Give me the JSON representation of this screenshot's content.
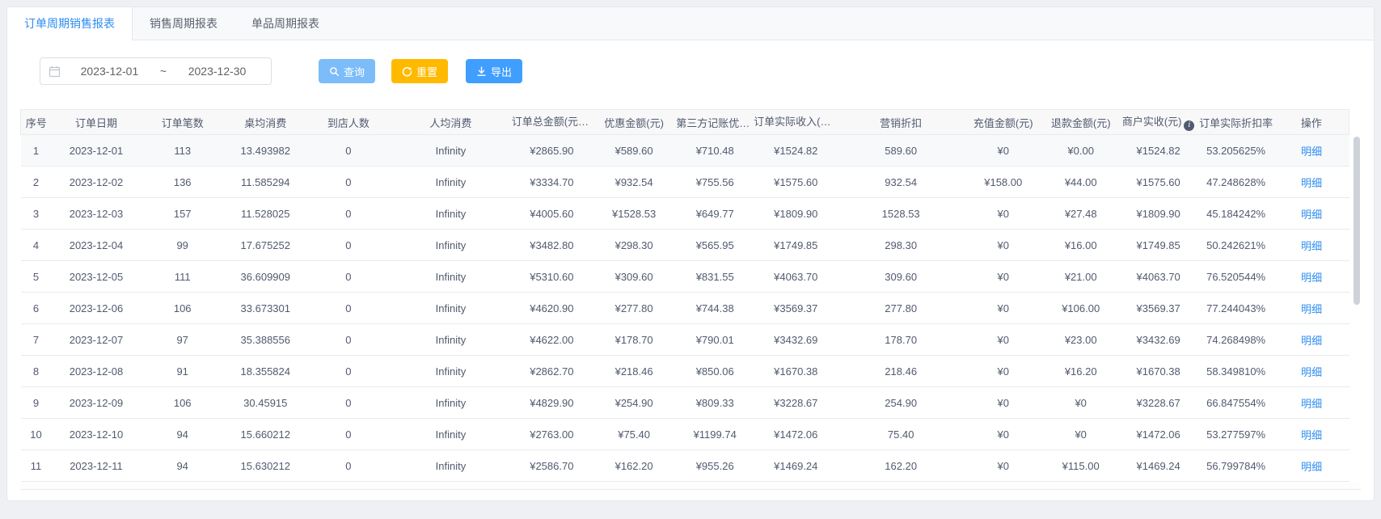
{
  "tabs": [
    {
      "label": "订单周期销售报表",
      "active": true
    },
    {
      "label": "销售周期报表",
      "active": false
    },
    {
      "label": "单品周期报表",
      "active": false
    }
  ],
  "filter": {
    "start_date": "2023-12-01",
    "range_separator": "~",
    "end_date": "2023-12-30"
  },
  "toolbar": {
    "query_label": "查询",
    "reset_label": "重置",
    "export_label": "导出"
  },
  "table": {
    "columns": [
      {
        "label": "序号",
        "info": false
      },
      {
        "label": "订单日期",
        "info": false
      },
      {
        "label": "订单笔数",
        "info": false
      },
      {
        "label": "桌均消费",
        "info": false
      },
      {
        "label": "到店人数",
        "info": false
      },
      {
        "label": "人均消费",
        "info": false
      },
      {
        "label": "订单总金额(元)",
        "info": true
      },
      {
        "label": "优惠金额(元)",
        "info": false
      },
      {
        "label": "第三方记账优惠(元)",
        "info": false
      },
      {
        "label": "订单实际收入(元)",
        "info": true
      },
      {
        "label": "营销折扣",
        "info": false
      },
      {
        "label": "充值金额(元)",
        "info": false
      },
      {
        "label": "退款金额(元)",
        "info": false
      },
      {
        "label": "商户实收(元)",
        "info": true
      },
      {
        "label": "订单实际折扣率",
        "info": false
      },
      {
        "label": "操作",
        "info": false
      }
    ],
    "action_label": "明细",
    "rows": [
      [
        "1",
        "2023-12-01",
        "113",
        "13.493982",
        "0",
        "Infinity",
        "¥2865.90",
        "¥589.60",
        "¥710.48",
        "¥1524.82",
        "589.60",
        "¥0",
        "¥0.00",
        "¥1524.82",
        "53.205625%"
      ],
      [
        "2",
        "2023-12-02",
        "136",
        "11.585294",
        "0",
        "Infinity",
        "¥3334.70",
        "¥932.54",
        "¥755.56",
        "¥1575.60",
        "932.54",
        "¥158.00",
        "¥44.00",
        "¥1575.60",
        "47.248628%"
      ],
      [
        "3",
        "2023-12-03",
        "157",
        "11.528025",
        "0",
        "Infinity",
        "¥4005.60",
        "¥1528.53",
        "¥649.77",
        "¥1809.90",
        "1528.53",
        "¥0",
        "¥27.48",
        "¥1809.90",
        "45.184242%"
      ],
      [
        "4",
        "2023-12-04",
        "99",
        "17.675252",
        "0",
        "Infinity",
        "¥3482.80",
        "¥298.30",
        "¥565.95",
        "¥1749.85",
        "298.30",
        "¥0",
        "¥16.00",
        "¥1749.85",
        "50.242621%"
      ],
      [
        "5",
        "2023-12-05",
        "111",
        "36.609909",
        "0",
        "Infinity",
        "¥5310.60",
        "¥309.60",
        "¥831.55",
        "¥4063.70",
        "309.60",
        "¥0",
        "¥21.00",
        "¥4063.70",
        "76.520544%"
      ],
      [
        "6",
        "2023-12-06",
        "106",
        "33.673301",
        "0",
        "Infinity",
        "¥4620.90",
        "¥277.80",
        "¥744.38",
        "¥3569.37",
        "277.80",
        "¥0",
        "¥106.00",
        "¥3569.37",
        "77.244043%"
      ],
      [
        "7",
        "2023-12-07",
        "97",
        "35.388556",
        "0",
        "Infinity",
        "¥4622.00",
        "¥178.70",
        "¥790.01",
        "¥3432.69",
        "178.70",
        "¥0",
        "¥23.00",
        "¥3432.69",
        "74.268498%"
      ],
      [
        "8",
        "2023-12-08",
        "91",
        "18.355824",
        "0",
        "Infinity",
        "¥2862.70",
        "¥218.46",
        "¥850.06",
        "¥1670.38",
        "218.46",
        "¥0",
        "¥16.20",
        "¥1670.38",
        "58.349810%"
      ],
      [
        "9",
        "2023-12-09",
        "106",
        "30.45915",
        "0",
        "Infinity",
        "¥4829.90",
        "¥254.90",
        "¥809.33",
        "¥3228.67",
        "254.90",
        "¥0",
        "¥0",
        "¥3228.67",
        "66.847554%"
      ],
      [
        "10",
        "2023-12-10",
        "94",
        "15.660212",
        "0",
        "Infinity",
        "¥2763.00",
        "¥75.40",
        "¥1199.74",
        "¥1472.06",
        "75.40",
        "¥0",
        "¥0",
        "¥1472.06",
        "53.277597%"
      ],
      [
        "11",
        "2023-12-11",
        "94",
        "15.630212",
        "0",
        "Infinity",
        "¥2586.70",
        "¥162.20",
        "¥955.26",
        "¥1469.24",
        "162.20",
        "¥0",
        "¥115.00",
        "¥1469.24",
        "56.799784%"
      ]
    ]
  },
  "colors": {
    "accent_blue": "#409eff",
    "light_blue_button": "#7cbcf9",
    "orange_button": "#ffba00",
    "link_blue": "#2d8cf0",
    "header_bg": "#f8f8f9",
    "row_border": "#e8eaec",
    "page_bg": "#eef0f4"
  }
}
